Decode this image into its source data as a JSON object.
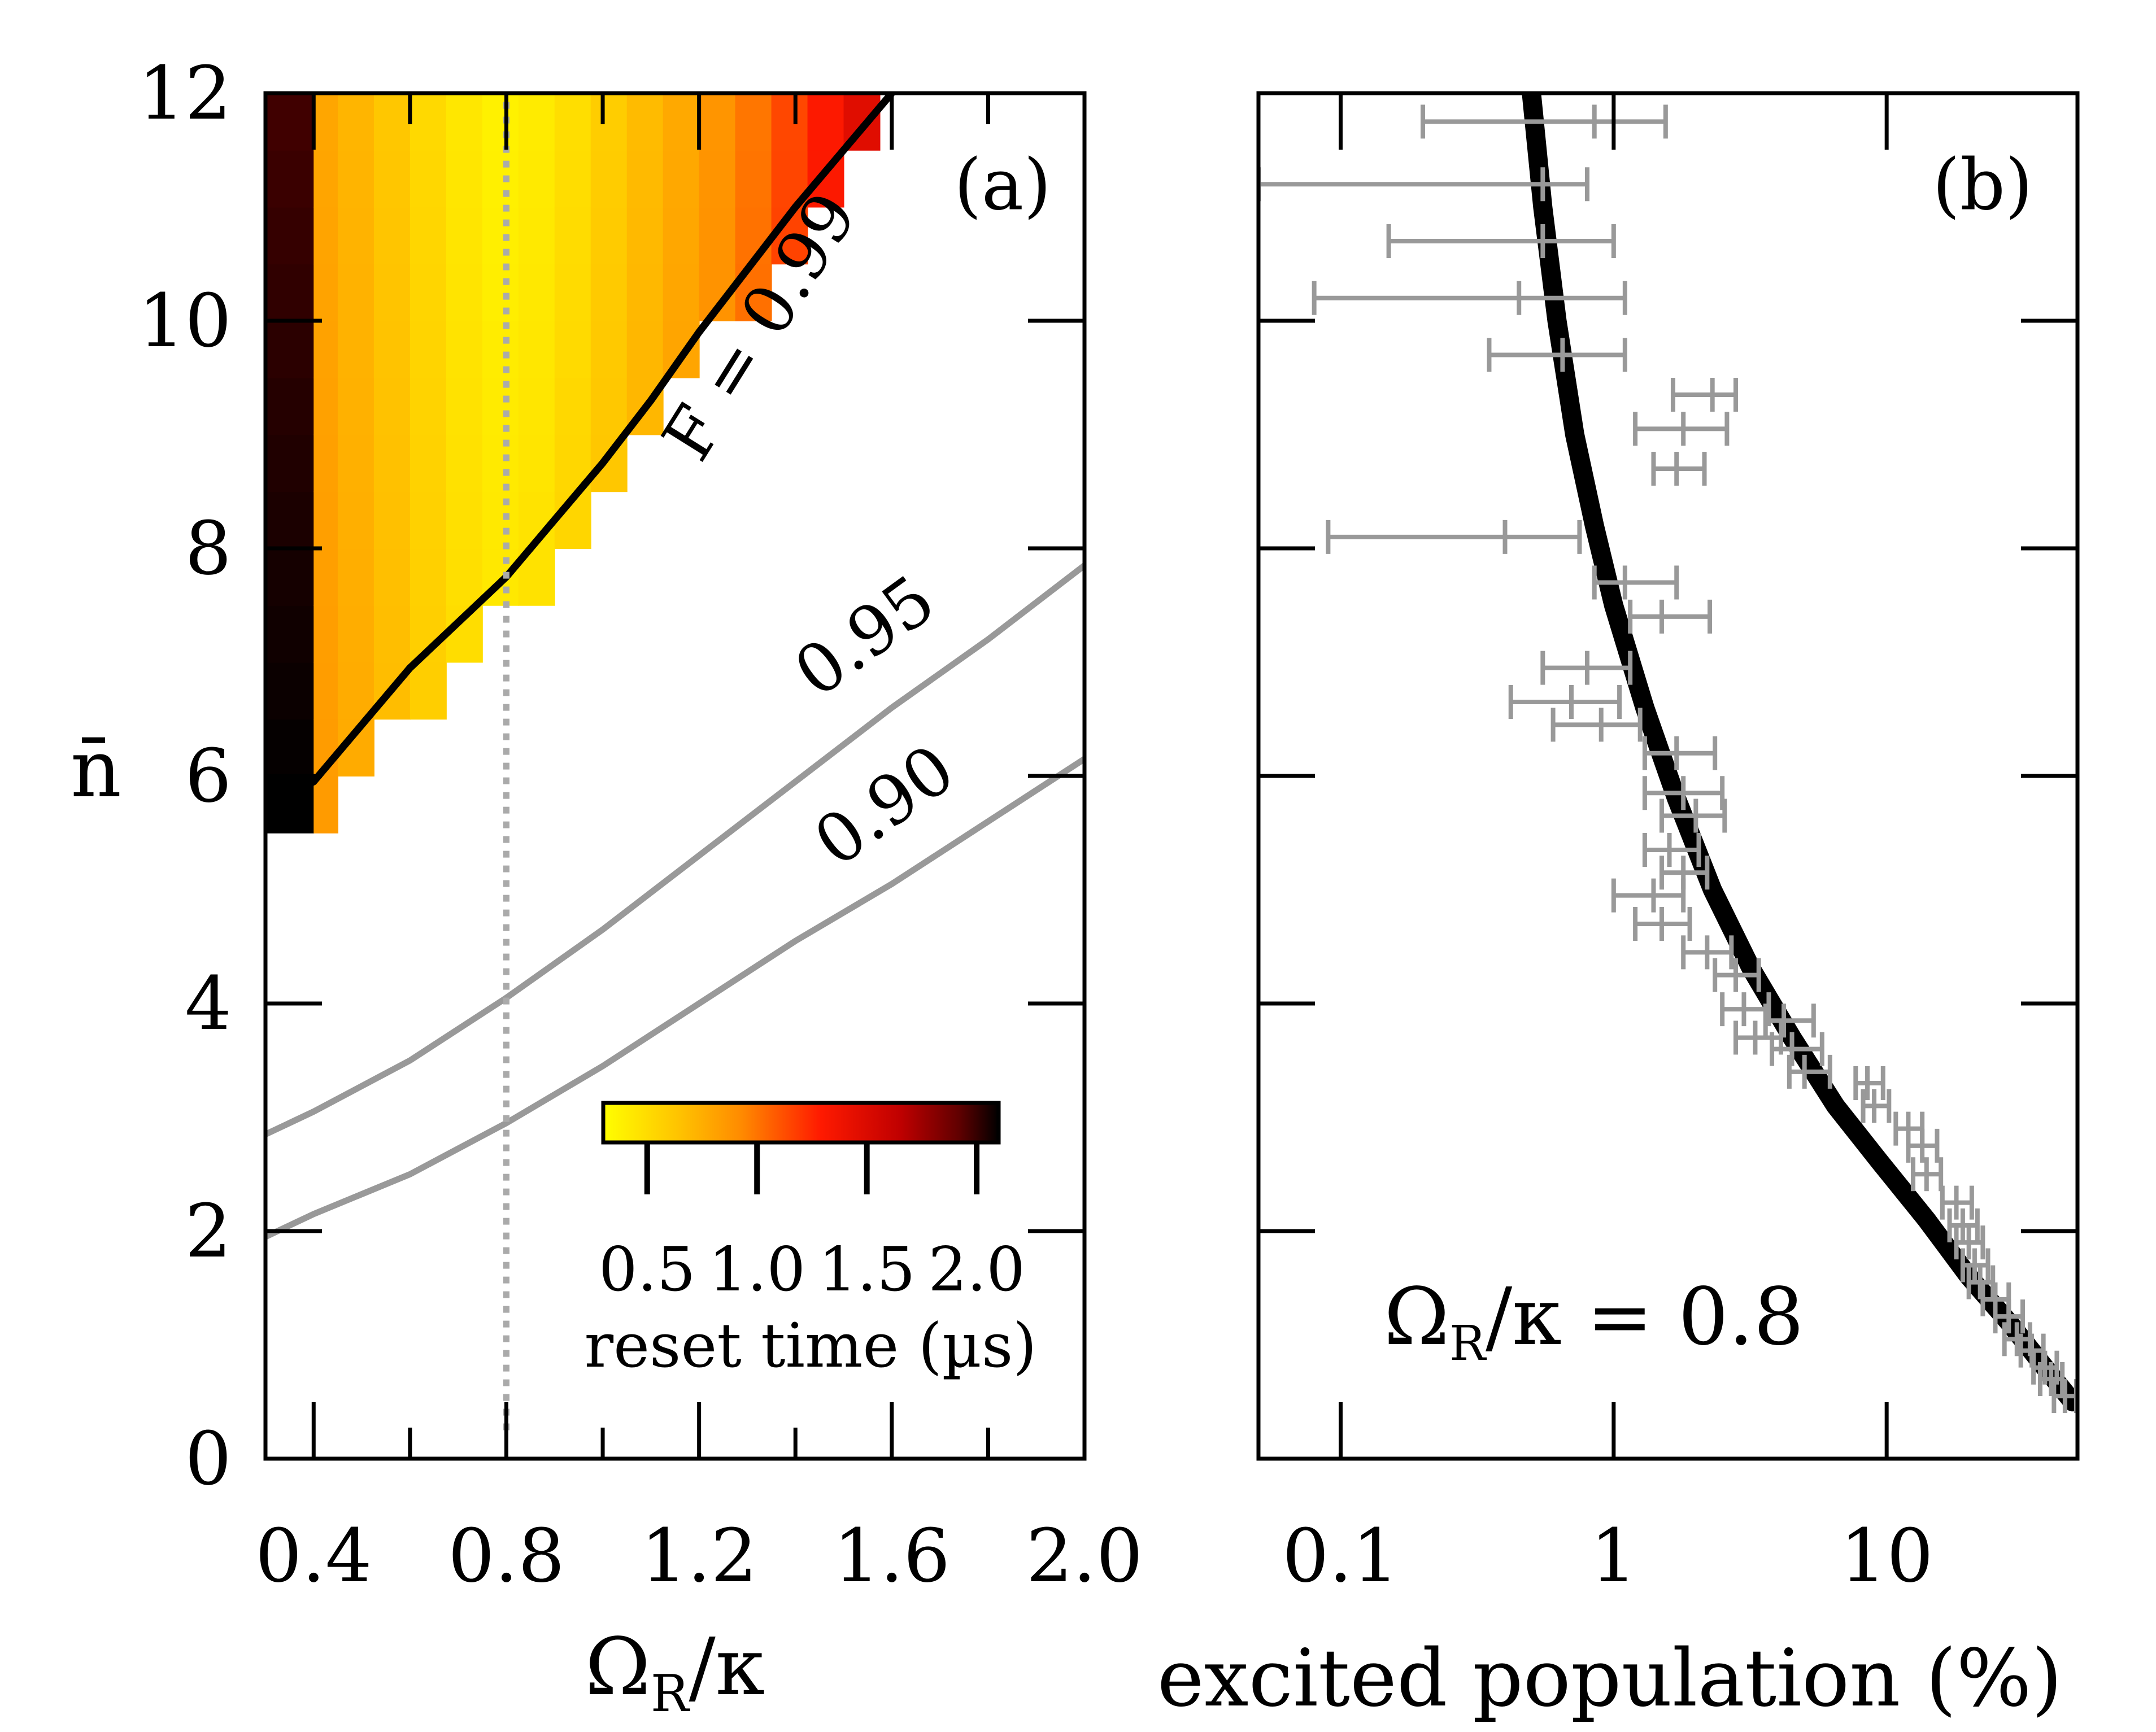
{
  "chart_data": [
    {
      "panel": "(a)",
      "type": "heatmap",
      "xlabel": "Ω_R/κ",
      "xlabel_main": "Ω",
      "xlabel_sub": "R",
      "xlabel_tail": "/κ",
      "ylabel": "n̄",
      "xlim": [
        0.3,
        2.0
      ],
      "ylim": [
        0,
        12
      ],
      "xticks": [
        0.4,
        0.8,
        1.2,
        1.6,
        2.0
      ],
      "xtick_labels": [
        "0.4",
        "0.8",
        "1.2",
        "1.6",
        "2.0"
      ],
      "yticks": [
        0,
        2,
        4,
        6,
        8,
        10,
        12
      ],
      "ytick_labels": [
        "0",
        "2",
        "4",
        "6",
        "8",
        "10",
        "12"
      ],
      "heatmap": {
        "x_edges": [
          0.3,
          0.4,
          0.45,
          0.525,
          0.6,
          0.675,
          0.75,
          0.825,
          0.9,
          0.975,
          1.05,
          1.125,
          1.2,
          1.275,
          1.35,
          1.425,
          1.5,
          1.575
        ],
        "y_step": 0.5,
        "region_limit": "F = 0.99 contour"
      },
      "colorbar": {
        "title": "reset time (µs)",
        "range": [
          0.3,
          2.1
        ],
        "ticks": [
          0.5,
          1.0,
          1.5,
          2.0
        ],
        "tick_labels": [
          "0.5",
          "1.0",
          "1.5",
          "2.0"
        ],
        "colormap": [
          "#ffff00",
          "#ffc000",
          "#ff8a00",
          "#ff1a00",
          "#c00000",
          "#600000",
          "#000000"
        ]
      },
      "contours": [
        {
          "label": "F = 0.99",
          "color": "#000000",
          "x": [
            0.3,
            0.4,
            0.5,
            0.6,
            0.7,
            0.8,
            0.9,
            1.0,
            1.1,
            1.2,
            1.3,
            1.4,
            1.5,
            1.6
          ],
          "y": [
            5.75,
            5.95,
            6.45,
            6.95,
            7.35,
            7.75,
            8.25,
            8.75,
            9.3,
            9.9,
            10.45,
            11.0,
            11.5,
            12.0
          ]
        },
        {
          "label": "0.95",
          "color": "#999999",
          "x": [
            0.3,
            0.4,
            0.6,
            0.8,
            1.0,
            1.2,
            1.4,
            1.6,
            1.8,
            2.0
          ],
          "y": [
            2.85,
            3.05,
            3.5,
            4.05,
            4.65,
            5.3,
            5.95,
            6.6,
            7.2,
            7.85
          ]
        },
        {
          "label": "0.90",
          "color": "#999999",
          "x": [
            0.3,
            0.4,
            0.6,
            0.8,
            1.0,
            1.2,
            1.4,
            1.6,
            1.8,
            2.0
          ],
          "y": [
            1.95,
            2.15,
            2.5,
            2.95,
            3.45,
            4.0,
            4.55,
            5.05,
            5.6,
            6.15
          ]
        }
      ],
      "vertical_line": {
        "x": 0.8,
        "style": "dotted",
        "color": "#aaaaaa",
        "y_range": [
          0.25,
          12
        ]
      }
    },
    {
      "panel": "(b)",
      "type": "scatter",
      "xscale": "log",
      "xlabel": "excited population (%)",
      "xlim": [
        0.05,
        50
      ],
      "ylim": [
        0,
        12
      ],
      "xticks": [
        0.1,
        1,
        10
      ],
      "xtick_labels": [
        "0.1",
        "1",
        "10"
      ],
      "yticks": [
        0,
        2,
        4,
        6,
        8,
        10,
        12
      ],
      "annotation": {
        "main": "Ω",
        "sub": "R",
        "tail": "/κ = 0.8"
      },
      "theory_curve": {
        "color": "#000000",
        "x": [
          0.5,
          0.55,
          0.62,
          0.72,
          0.85,
          1.0,
          1.3,
          1.7,
          2.3,
          3.2,
          4.5,
          6.5,
          9.5,
          14,
          20,
          28,
          38,
          48
        ],
        "y": [
          12.0,
          11.0,
          10.0,
          9.0,
          8.2,
          7.5,
          6.6,
          5.8,
          5.0,
          4.3,
          3.7,
          3.1,
          2.6,
          2.1,
          1.6,
          1.2,
          0.8,
          0.5
        ]
      },
      "data_points": {
        "color": "#999999",
        "x": [
          0.85,
          0.55,
          0.55,
          0.45,
          0.65,
          2.3,
          1.8,
          1.7,
          0.4,
          1.1,
          1.5,
          0.8,
          0.7,
          0.9,
          1.7,
          1.8,
          2.0,
          1.6,
          1.8,
          1.4,
          1.5,
          2.2,
          2.8,
          3.0,
          3.3,
          4.2,
          4.5,
          5.0,
          8.5,
          9.0,
          12.0,
          13.5,
          14.0,
          18.0,
          19.0,
          20.0,
          21.0,
          22.0,
          25.0,
          28.0,
          30.0,
          34.0,
          38.0,
          40.0,
          45.0
        ],
        "xerr_low": [
          0.65,
          0.5,
          0.4,
          0.37,
          0.3,
          0.65,
          0.6,
          0.3,
          0.31,
          0.25,
          0.35,
          0.25,
          0.28,
          0.3,
          0.4,
          0.5,
          0.5,
          0.3,
          0.3,
          0.4,
          0.3,
          0.4,
          0.45,
          0.5,
          0.5,
          0.6,
          0.7,
          0.6,
          0.8,
          0.8,
          1.2,
          1.5,
          1.5,
          2.0,
          2.0,
          2.0,
          2.0,
          2.0,
          2.5,
          3.0,
          3.0,
          3.0,
          3.5,
          3.5,
          4.0
        ],
        "xerr_high": [
          0.7,
          0.25,
          0.45,
          0.65,
          0.45,
          0.5,
          0.8,
          0.45,
          0.35,
          0.6,
          0.75,
          0.35,
          0.35,
          0.35,
          0.65,
          0.7,
          0.55,
          0.45,
          0.4,
          0.4,
          0.4,
          0.5,
          0.6,
          0.7,
          0.8,
          1.2,
          1.3,
          1.2,
          1.2,
          1.2,
          1.5,
          1.8,
          1.8,
          2.5,
          2.5,
          2.5,
          2.5,
          2.5,
          3.0,
          3.5,
          3.5,
          3.5,
          4.0,
          4.0,
          4.5
        ],
        "y": [
          11.75,
          11.2,
          10.7,
          10.2,
          9.7,
          9.35,
          9.05,
          8.7,
          8.1,
          7.7,
          7.4,
          6.95,
          6.65,
          6.45,
          6.2,
          5.85,
          5.65,
          5.35,
          5.15,
          4.95,
          4.7,
          4.45,
          4.25,
          3.95,
          3.7,
          3.85,
          3.6,
          3.4,
          3.3,
          3.1,
          2.9,
          2.75,
          2.5,
          2.25,
          2.05,
          1.9,
          1.7,
          1.55,
          1.4,
          1.25,
          1.05,
          0.95,
          0.8,
          0.7,
          0.55
        ]
      }
    }
  ]
}
